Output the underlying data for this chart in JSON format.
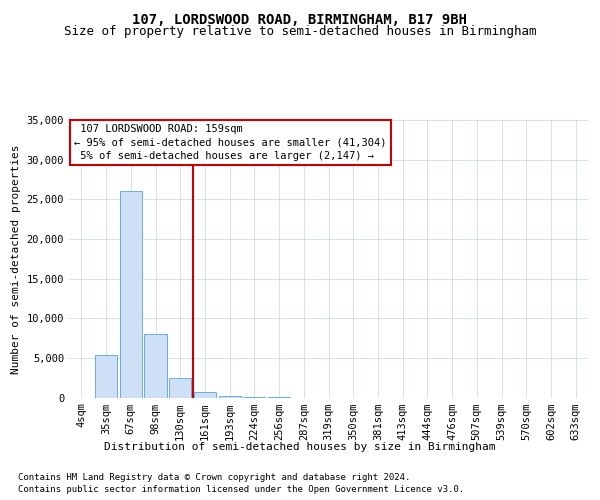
{
  "title": "107, LORDSWOOD ROAD, BIRMINGHAM, B17 9BH",
  "subtitle": "Size of property relative to semi-detached houses in Birmingham",
  "xlabel": "Distribution of semi-detached houses by size in Birmingham",
  "ylabel": "Number of semi-detached properties",
  "footnote1": "Contains HM Land Registry data © Crown copyright and database right 2024.",
  "footnote2": "Contains public sector information licensed under the Open Government Licence v3.0.",
  "bar_labels": [
    "4sqm",
    "35sqm",
    "67sqm",
    "98sqm",
    "130sqm",
    "161sqm",
    "193sqm",
    "224sqm",
    "256sqm",
    "287sqm",
    "319sqm",
    "350sqm",
    "381sqm",
    "413sqm",
    "444sqm",
    "476sqm",
    "507sqm",
    "539sqm",
    "570sqm",
    "602sqm",
    "633sqm"
  ],
  "bar_values": [
    0,
    5300,
    26000,
    8000,
    2500,
    700,
    200,
    100,
    50,
    0,
    0,
    0,
    0,
    0,
    0,
    0,
    0,
    0,
    0,
    0,
    0
  ],
  "bar_color": "#cde0f5",
  "bar_edge_color": "#6aaee0",
  "property_line_index": 5,
  "property_line_color": "#cc0000",
  "annotation_line1": "107 LORDSWOOD ROAD: 159sqm",
  "annotation_line2": "← 95% of semi-detached houses are smaller (41,304)",
  "annotation_line3": "5% of semi-detached houses are larger (2,147) →",
  "annotation_box_ec": "#cc0000",
  "ylim": [
    0,
    35000
  ],
  "yticks": [
    0,
    5000,
    10000,
    15000,
    20000,
    25000,
    30000,
    35000
  ],
  "background_color": "#ffffff",
  "grid_color": "#d0daea",
  "title_fontsize": 10,
  "subtitle_fontsize": 9,
  "tick_fontsize": 7.5,
  "footnote_fontsize": 6.5
}
